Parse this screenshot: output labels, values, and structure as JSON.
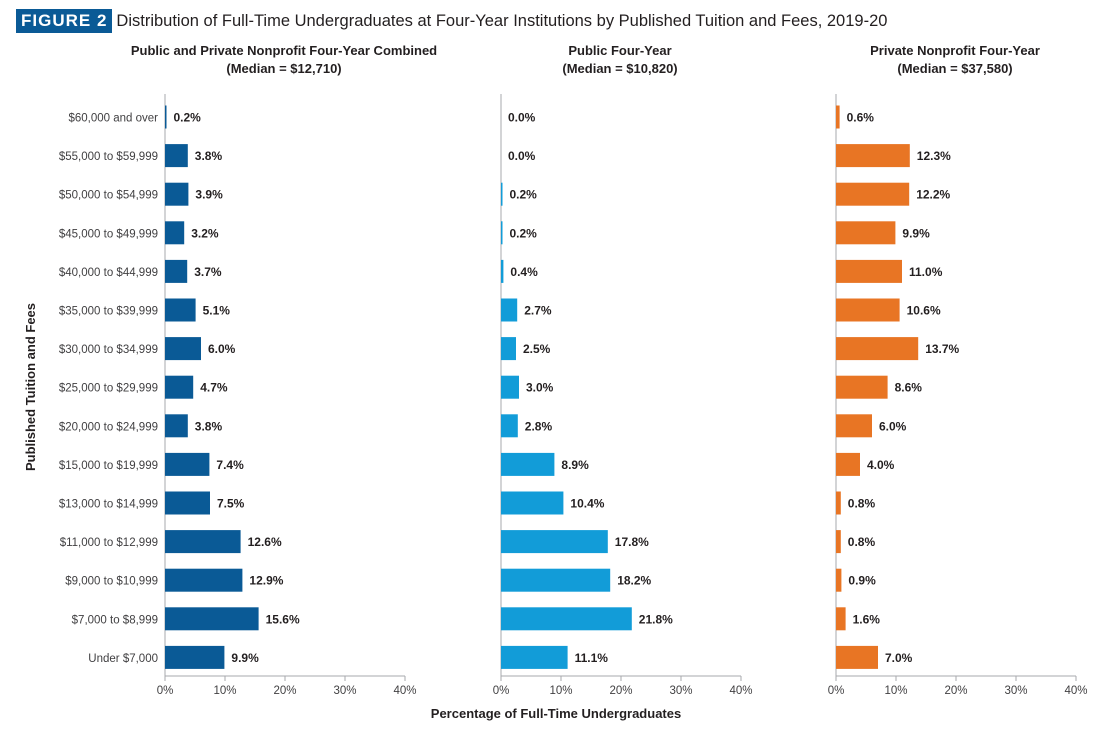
{
  "figure": {
    "badge": "FIGURE 2",
    "title": "Distribution of Full-Time Undergraduates at Four-Year Institutions by Published Tuition and Fees, 2019-20"
  },
  "chart_data": {
    "type": "bar",
    "orientation": "horizontal",
    "title": "Distribution of Full-Time Undergraduates at Four-Year Institutions by Published Tuition and Fees, 2019-20",
    "xlabel": "Percentage of Full-Time Undergraduates",
    "ylabel": "Published Tuition and Fees",
    "xlim": [
      0,
      40
    ],
    "x_ticks": [
      0,
      10,
      20,
      30,
      40
    ],
    "x_tick_labels": [
      "0%",
      "10%",
      "20%",
      "30%",
      "40%"
    ],
    "grid": false,
    "categories": [
      "$60,000 and over",
      "$55,000 to $59,999",
      "$50,000 to $54,999",
      "$45,000 to $49,999",
      "$40,000 to $44,999",
      "$35,000 to $39,999",
      "$30,000 to $34,999",
      "$25,000 to $29,999",
      "$20,000 to $24,999",
      "$15,000 to $19,999",
      "$13,000 to $14,999",
      "$11,000 to $12,999",
      "$9,000 to $10,999",
      "$7,000 to $8,999",
      "Under $7,000"
    ],
    "series": [
      {
        "name": "Public and Private Nonprofit Four-Year Combined",
        "subtitle": "(Median = $12,710)",
        "color": "#0a5a96",
        "values": [
          0.2,
          3.8,
          3.9,
          3.2,
          3.7,
          5.1,
          6.0,
          4.7,
          3.8,
          7.4,
          7.5,
          12.6,
          12.9,
          15.6,
          9.9
        ],
        "labels": [
          "0.2%",
          "3.8%",
          "3.9%",
          "3.2%",
          "3.7%",
          "5.1%",
          "6.0%",
          "4.7%",
          "3.8%",
          "7.4%",
          "7.5%",
          "12.6%",
          "12.9%",
          "15.6%",
          "9.9%"
        ]
      },
      {
        "name": "Public Four-Year",
        "subtitle": "(Median = $10,820)",
        "color": "#129cd8",
        "values": [
          0.0,
          0.0,
          0.2,
          0.2,
          0.4,
          2.7,
          2.5,
          3.0,
          2.8,
          8.9,
          10.4,
          17.8,
          18.2,
          21.8,
          11.1
        ],
        "labels": [
          "0.0%",
          "0.0%",
          "0.2%",
          "0.2%",
          "0.4%",
          "2.7%",
          "2.5%",
          "3.0%",
          "2.8%",
          "8.9%",
          "10.4%",
          "17.8%",
          "18.2%",
          "21.8%",
          "11.1%"
        ]
      },
      {
        "name": "Private Nonprofit Four-Year",
        "subtitle": "(Median = $37,580)",
        "color": "#e87524",
        "values": [
          0.6,
          12.3,
          12.2,
          9.9,
          11.0,
          10.6,
          13.7,
          8.6,
          6.0,
          4.0,
          0.8,
          0.8,
          0.9,
          1.6,
          7.0
        ],
        "labels": [
          "0.6%",
          "12.3%",
          "12.2%",
          "9.9%",
          "11.0%",
          "10.6%",
          "13.7%",
          "8.6%",
          "6.0%",
          "4.0%",
          "0.8%",
          "0.8%",
          "0.9%",
          "1.6%",
          "7.0%"
        ]
      }
    ]
  }
}
